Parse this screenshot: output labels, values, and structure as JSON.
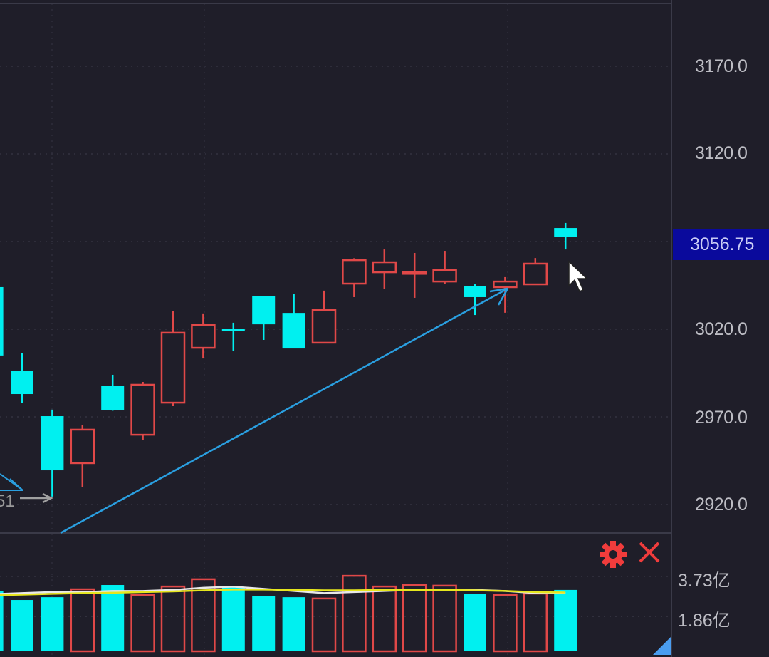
{
  "chart_data": {
    "type": "candlestick",
    "title": "",
    "price_axis": {
      "ticks": [
        "3170.0",
        "3120.0",
        "3020.0",
        "2970.0",
        "2920.0"
      ],
      "tick_values": [
        3170,
        3120,
        3020,
        2970,
        2920
      ],
      "range": [
        2904,
        3206
      ]
    },
    "last_price_label": "3056.75",
    "candles": [
      {
        "o": 3044,
        "c": 3005,
        "h": 3046,
        "l": 3003
      },
      {
        "o": 2996.4,
        "c": 2983,
        "h": 3006.6,
        "l": 2978
      },
      {
        "o": 2970.4,
        "c": 2939.5,
        "h": 2974.1,
        "l": 2924.5
      },
      {
        "o": 2943.6,
        "c": 2962.7,
        "h": 2965.1,
        "l": 2929.8
      },
      {
        "o": 2987.5,
        "c": 2973.7,
        "h": 2994,
        "l": 2973.5
      },
      {
        "o": 2959.8,
        "c": 2988.3,
        "h": 2989.9,
        "l": 2956.6
      },
      {
        "o": 2978.1,
        "c": 3018,
        "h": 3030.2,
        "l": 2976.1
      },
      {
        "o": 3009.4,
        "c": 3022.4,
        "h": 3029,
        "l": 3003.3
      },
      {
        "o": 3020.2,
        "c": 3019.5,
        "h": 3023.7,
        "l": 3007.8
      },
      {
        "o": 3039.1,
        "c": 3022.8,
        "h": 3039.1,
        "l": 3013.9
      },
      {
        "o": 3029.3,
        "c": 3009,
        "h": 3040.3,
        "l": 3009
      },
      {
        "o": 3012.3,
        "c": 3031,
        "h": 3042,
        "l": 3012
      },
      {
        "o": 3046,
        "c": 3059.4,
        "h": 3060.5,
        "l": 3038.3
      },
      {
        "o": 3052.5,
        "c": 3058.2,
        "h": 3065.5,
        "l": 3042.8
      },
      {
        "o": 3052,
        "c": 3052.6,
        "h": 3063.5,
        "l": 3037.9
      },
      {
        "o": 3047.2,
        "c": 3053.7,
        "h": 3064.7,
        "l": 3046
      },
      {
        "o": 3044.4,
        "c": 3038.3,
        "h": 3045.6,
        "l": 3028.1
      },
      {
        "o": 3044,
        "c": 3047.2,
        "h": 3049.7,
        "l": 3029.4
      },
      {
        "o": 3045.6,
        "c": 3057.4,
        "h": 3060.6,
        "l": 3045.6
      },
      {
        "o": 3077.7,
        "c": 3072.8,
        "h": 3080.6,
        "l": 3065.5
      }
    ],
    "volume": {
      "unit": "亿",
      "ticks": [
        "3.73亿",
        "1.86亿"
      ],
      "tick_values": [
        3.73,
        1.86
      ],
      "values": [
        3.06,
        2.63,
        2.76,
        3.13,
        3.33,
        2.86,
        3.26,
        3.6,
        3.23,
        2.83,
        2.76,
        2.7,
        3.76,
        3.26,
        3.33,
        3.3,
        2.93,
        2.86,
        2.93,
        3.1
      ],
      "ma_white": [
        2.9,
        2.95,
        3.0,
        3.0,
        3.05,
        3.05,
        3.1,
        3.2,
        3.25,
        3.15,
        3.05,
        2.95,
        3.0,
        3.05,
        3.1,
        3.1,
        3.1,
        3.05,
        2.95,
        2.95
      ],
      "ma_yellow": [
        2.85,
        2.88,
        2.92,
        2.95,
        2.97,
        3.0,
        3.03,
        3.08,
        3.12,
        3.12,
        3.1,
        3.08,
        3.08,
        3.1,
        3.1,
        3.1,
        3.08,
        3.05,
        3.0,
        2.98
      ]
    },
    "annotation_text": "51",
    "colors": {
      "up": "#e04848",
      "down": "#00f0f0",
      "trend": "#2a9fe0",
      "bg": "#1f1e29"
    }
  },
  "icons": {
    "settings": "gear-icon",
    "close": "close-icon",
    "cursor": "mouse-pointer-icon"
  }
}
